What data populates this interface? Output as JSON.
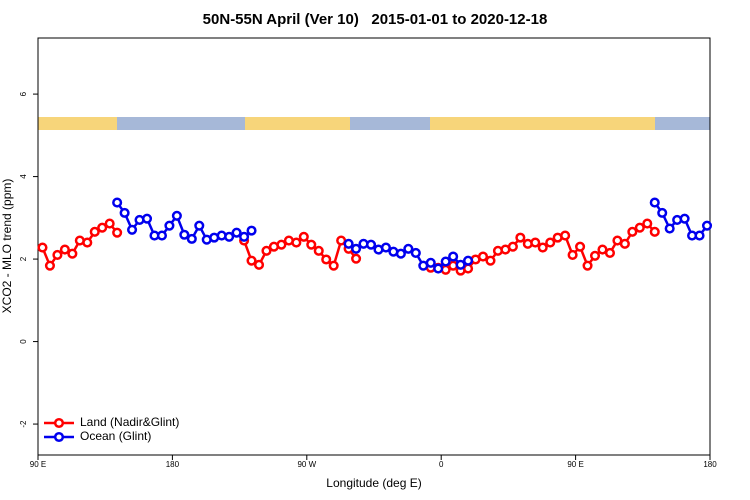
{
  "chart_data": {
    "type": "line",
    "title": "50N-55N April (Ver 10)   2015-01-01 to 2020-12-18",
    "x_label": "Longitude (deg E)",
    "y_label": "XCO2 - MLO trend (ppm)",
    "xlim": [
      90,
      540
    ],
    "ylim": [
      -2.75,
      7.36
    ],
    "xticks": [
      {
        "value": 90,
        "label": "90 E"
      },
      {
        "value": 180,
        "label": "180"
      },
      {
        "value": 270,
        "label": "90 W"
      },
      {
        "value": 360,
        "label": "0"
      },
      {
        "value": 450,
        "label": "90 E"
      },
      {
        "value": 540,
        "label": "180"
      }
    ],
    "yticks": [
      -2,
      0,
      2,
      4,
      6
    ],
    "legend_position": "bottom-left",
    "x": [
      93,
      98,
      103,
      108,
      113,
      118,
      123,
      128,
      133,
      138,
      143,
      148,
      153,
      158,
      163,
      168,
      173,
      178,
      183,
      188,
      193,
      198,
      203,
      208,
      213,
      218,
      223,
      228,
      233,
      238,
      243,
      248,
      253,
      258,
      263,
      268,
      273,
      278,
      283,
      288,
      293,
      298,
      303,
      308,
      313,
      318,
      323,
      328,
      333,
      338,
      343,
      348,
      353,
      358,
      363,
      368,
      373,
      378,
      383,
      388,
      393,
      398,
      403,
      408,
      413,
      418,
      423,
      428,
      433,
      438,
      443,
      448,
      453,
      458,
      463,
      468,
      473,
      478,
      483,
      488,
      493,
      498,
      503,
      508,
      513,
      518,
      523,
      528,
      533,
      538
    ],
    "series": [
      {
        "name": "Land (Nadir&Glint)",
        "color": "#ff0000",
        "values": [
          2.28,
          1.84,
          2.1,
          2.23,
          2.13,
          2.45,
          2.4,
          2.66,
          2.76,
          2.86,
          2.64,
          null,
          null,
          null,
          null,
          null,
          null,
          null,
          null,
          null,
          null,
          null,
          null,
          null,
          null,
          null,
          null,
          2.45,
          1.96,
          1.86,
          2.2,
          2.3,
          2.35,
          2.45,
          2.4,
          2.54,
          2.35,
          2.2,
          1.99,
          1.84,
          2.45,
          2.25,
          2.01,
          null,
          null,
          null,
          null,
          null,
          null,
          null,
          null,
          null,
          1.79,
          1.79,
          1.74,
          1.84,
          1.72,
          1.77,
          1.99,
          2.06,
          1.96,
          2.2,
          2.23,
          2.3,
          2.52,
          2.37,
          2.4,
          2.28,
          2.4,
          2.52,
          2.57,
          2.1,
          2.3,
          1.84,
          2.08,
          2.23,
          2.15,
          2.45,
          2.37,
          2.66,
          2.76,
          2.86,
          2.66,
          null,
          null,
          null,
          null,
          null,
          null,
          null
        ]
      },
      {
        "name": "Ocean (Glint)",
        "color": "#0000ee",
        "values": [
          null,
          null,
          null,
          null,
          null,
          null,
          null,
          null,
          null,
          null,
          3.37,
          3.12,
          2.71,
          2.95,
          2.98,
          2.57,
          2.57,
          2.81,
          3.05,
          2.59,
          2.49,
          2.81,
          2.47,
          2.52,
          2.57,
          2.54,
          2.64,
          2.54,
          2.69,
          null,
          null,
          null,
          null,
          null,
          null,
          null,
          null,
          null,
          null,
          null,
          null,
          2.37,
          2.25,
          2.37,
          2.35,
          2.23,
          2.28,
          2.18,
          2.13,
          2.25,
          2.15,
          1.84,
          1.91,
          1.77,
          1.94,
          2.06,
          1.86,
          1.96,
          null,
          null,
          null,
          null,
          null,
          null,
          null,
          null,
          null,
          null,
          null,
          null,
          null,
          null,
          null,
          null,
          null,
          null,
          null,
          null,
          null,
          null,
          null,
          null,
          3.37,
          3.12,
          2.74,
          2.95,
          2.98,
          2.57,
          2.57,
          2.81
        ]
      }
    ]
  }
}
